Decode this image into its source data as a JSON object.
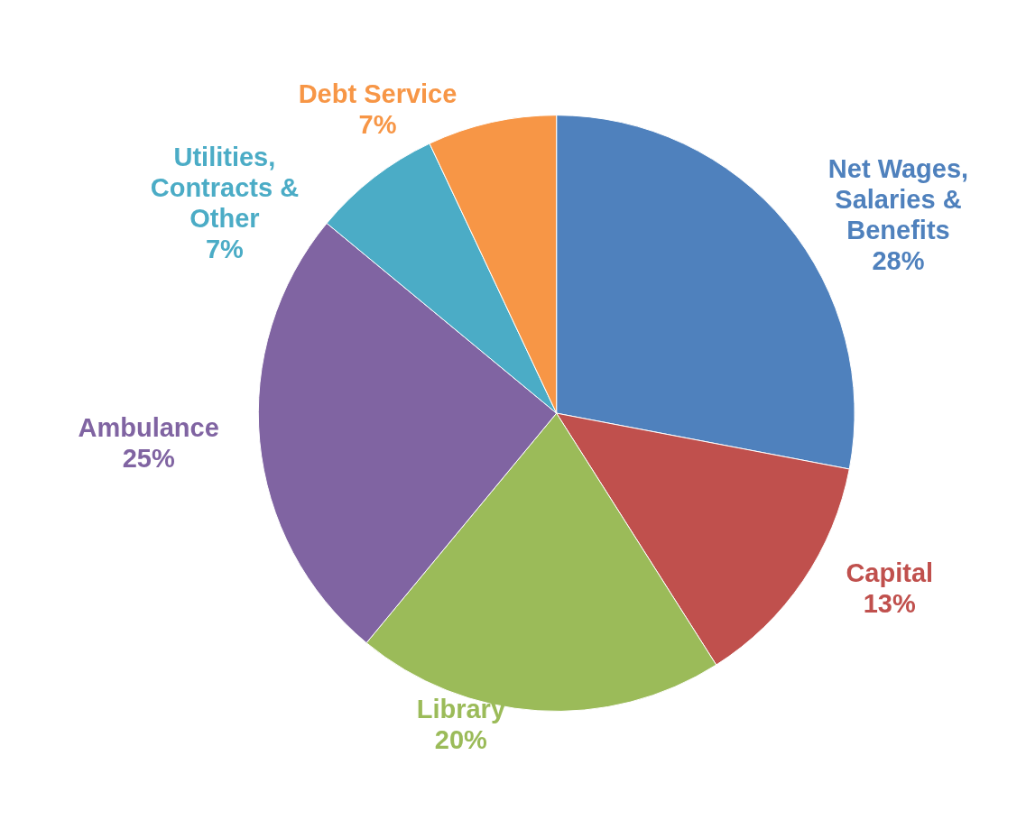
{
  "chart_data": {
    "type": "pie",
    "categories": [
      "Net Wages, Salaries & Benefits",
      "Capital",
      "Library",
      "Ambulance",
      "Utilities, Contracts & Other",
      "Debt Service"
    ],
    "values": [
      28,
      13,
      20,
      25,
      7,
      7
    ],
    "colors": [
      "#4f81bd",
      "#c0504d",
      "#9bbb59",
      "#8064a2",
      "#4bacc6",
      "#f79646"
    ],
    "value_labels": [
      "28%",
      "13%",
      "20%",
      "25%",
      "7%",
      "7%"
    ],
    "legend": false
  }
}
